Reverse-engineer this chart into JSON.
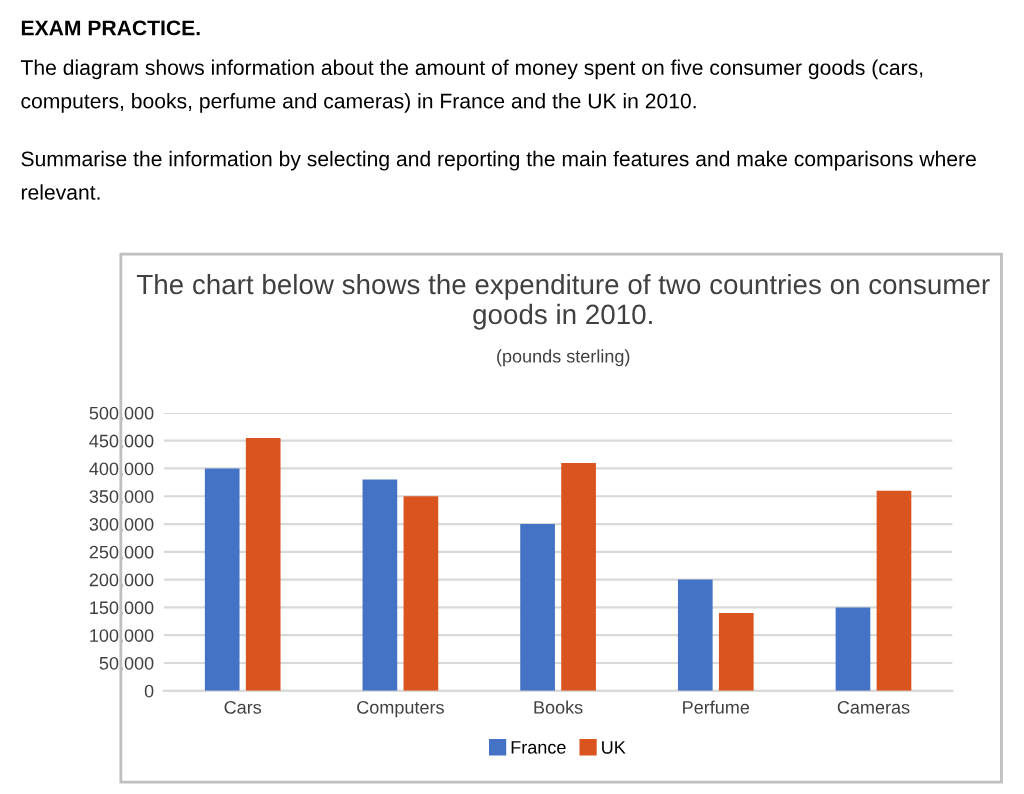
{
  "chart_data": {
    "type": "bar",
    "title": "The chart below shows the expenditure of two countries on consumer goods in 2010.",
    "subtitle": "(pounds sterling)",
    "annotations": [
      "EXAM PRACTICE.",
      "The diagram shows information about the amount of money spent on five consumer goods (cars, computers, books, perfume and cameras) in France and the UK in 2010.",
      "Summarise the information by selecting and reporting the main features and make comparisons where relevant."
    ],
    "categories": [
      "Cars",
      "Computers",
      "Books",
      "Perfume",
      "Cameras"
    ],
    "series": [
      {
        "name": "France",
        "color": "#4472c4",
        "values": [
          400000,
          380000,
          300000,
          200000,
          150000
        ]
      },
      {
        "name": "UK",
        "color": "#d9541e",
        "values": [
          455000,
          350000,
          410000,
          140000,
          360000
        ]
      }
    ],
    "ylim": [
      0,
      500000
    ],
    "yticks": [
      {
        "value": 0,
        "label": "0"
      },
      {
        "value": 50000,
        "label": "50,000"
      },
      {
        "value": 100000,
        "label": "100,000"
      },
      {
        "value": 150000,
        "label": "150,000"
      },
      {
        "value": 200000,
        "label": "200,000"
      },
      {
        "value": 250000,
        "label": "250,000"
      },
      {
        "value": 300000,
        "label": "300,000"
      },
      {
        "value": 350000,
        "label": "350,000"
      },
      {
        "value": 400000,
        "label": "400,000"
      },
      {
        "value": 450000,
        "label": "450,000"
      },
      {
        "value": 500000,
        "label": "500,000"
      }
    ],
    "grid": "y",
    "legend": "bottom"
  }
}
